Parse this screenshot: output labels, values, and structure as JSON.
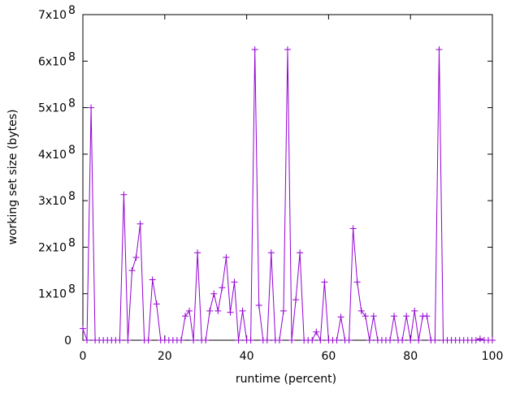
{
  "chart_data": {
    "type": "line",
    "title": "",
    "xlabel": "runtime (percent)",
    "ylabel": "working set size (bytes)",
    "xlim": [
      0,
      100
    ],
    "ylim": [
      0,
      700000000
    ],
    "x_ticks": [
      0,
      20,
      40,
      60,
      80,
      100
    ],
    "x_tick_labels": [
      "0",
      "20",
      "40",
      "60",
      "80",
      "100"
    ],
    "y_ticks": [
      0,
      100000000,
      200000000,
      300000000,
      400000000,
      500000000,
      600000000,
      700000000
    ],
    "y_tick_labels": [
      {
        "mant": "0",
        "exp": ""
      },
      {
        "mant": "1x10",
        "exp": "8"
      },
      {
        "mant": "2x10",
        "exp": "8"
      },
      {
        "mant": "3x10",
        "exp": "8"
      },
      {
        "mant": "4x10",
        "exp": "8"
      },
      {
        "mant": "5x10",
        "exp": "8"
      },
      {
        "mant": "6x10",
        "exp": "8"
      },
      {
        "mant": "7x10",
        "exp": "8"
      }
    ],
    "grid": false,
    "legend": "none",
    "series_color": "#9400d3",
    "series": [
      {
        "name": "working set",
        "marker": "plus",
        "x": [
          0,
          1,
          2,
          3,
          4,
          5,
          6,
          7,
          8,
          9,
          10,
          11,
          12,
          13,
          14,
          15,
          16,
          17,
          18,
          19,
          20,
          21,
          22,
          23,
          24,
          25,
          26,
          27,
          28,
          29,
          30,
          31,
          32,
          33,
          34,
          35,
          36,
          37,
          38,
          39,
          40,
          41,
          42,
          43,
          44,
          45,
          46,
          47,
          48,
          49,
          50,
          51,
          52,
          53,
          54,
          55,
          56,
          57,
          58,
          59,
          60,
          61,
          62,
          63,
          64,
          65,
          66,
          67,
          68,
          69,
          70,
          71,
          72,
          73,
          74,
          75,
          76,
          77,
          78,
          79,
          80,
          81,
          82,
          83,
          84,
          85,
          86,
          87,
          88,
          89,
          90,
          91,
          92,
          93,
          94,
          95,
          96,
          97,
          98,
          99,
          100
        ],
        "y": [
          25000000,
          0,
          500000000,
          0,
          0,
          0,
          0,
          0,
          0,
          0,
          313000000,
          0,
          150000000,
          178000000,
          250000000,
          0,
          0,
          130000000,
          78000000,
          0,
          0,
          0,
          0,
          0,
          0,
          52000000,
          63000000,
          0,
          188000000,
          0,
          0,
          63000000,
          100000000,
          63000000,
          113000000,
          178000000,
          60000000,
          125000000,
          0,
          63000000,
          0,
          0,
          625000000,
          75000000,
          0,
          0,
          188000000,
          0,
          0,
          63000000,
          625000000,
          0,
          87000000,
          188000000,
          0,
          0,
          0,
          18000000,
          0,
          125000000,
          0,
          0,
          0,
          50000000,
          0,
          0,
          240000000,
          125000000,
          63000000,
          52000000,
          0,
          52000000,
          0,
          0,
          0,
          0,
          52000000,
          0,
          0,
          52000000,
          0,
          63000000,
          0,
          52000000,
          52000000,
          0,
          0,
          625000000,
          0,
          0,
          0,
          0,
          0,
          0,
          0,
          0,
          0,
          3000000,
          0,
          0,
          0
        ]
      }
    ]
  }
}
